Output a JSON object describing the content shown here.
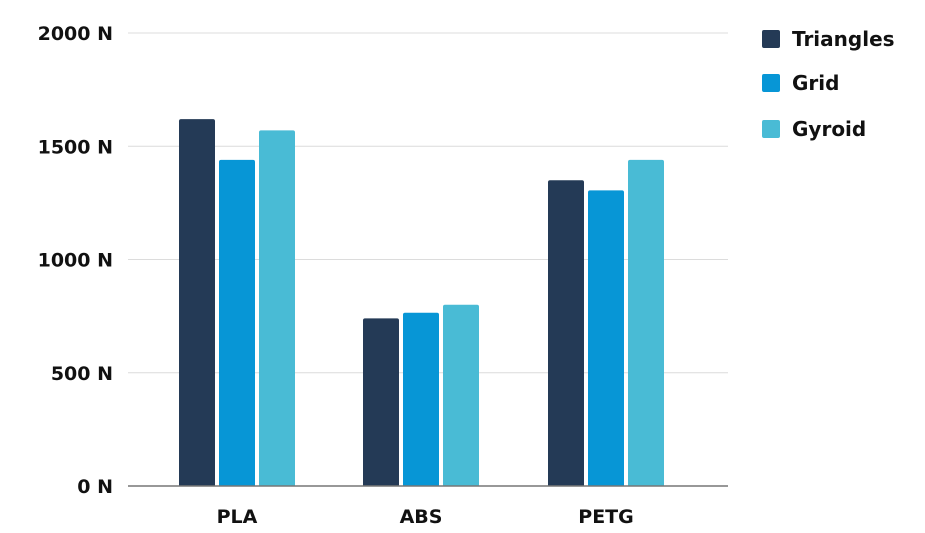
{
  "chart_data": {
    "type": "bar",
    "title": "",
    "xlabel": "",
    "ylabel": "",
    "categories": [
      "PLA",
      "ABS",
      "PETG"
    ],
    "series": [
      {
        "name": "Triangles",
        "color": "#243a56",
        "values": [
          1620,
          740,
          1350
        ]
      },
      {
        "name": "Grid",
        "color": "#0796d6",
        "values": [
          1440,
          765,
          1305
        ]
      },
      {
        "name": "Gyroid",
        "color": "#49bbd5",
        "values": [
          1570,
          800,
          1440
        ]
      }
    ],
    "ylim": [
      0,
      2000
    ],
    "yticks": [
      0,
      500,
      1000,
      1500,
      2000
    ],
    "ytick_labels": [
      "0 N",
      "500 N",
      "1000 N",
      "1500 N",
      "2000 N"
    ],
    "grid": true,
    "legend_position": "top-right"
  }
}
